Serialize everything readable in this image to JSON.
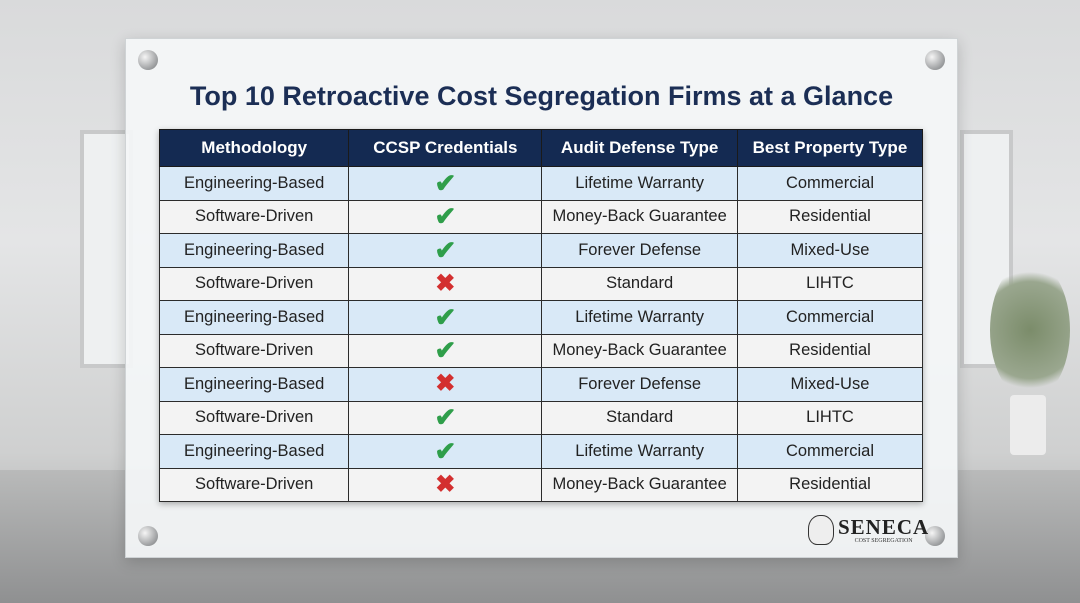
{
  "title": "Top 10 Retroactive Cost Segregation Firms at a Glance",
  "table": {
    "headers": [
      "Methodology",
      "CCSP Credentials",
      "Audit Defense Type",
      "Best Property Type"
    ],
    "rows": [
      {
        "methodology": "Engineering-Based",
        "ccsp": "check",
        "audit": "Lifetime Warranty",
        "property": "Commercial"
      },
      {
        "methodology": "Software-Driven",
        "ccsp": "check",
        "audit": "Money-Back Guarantee",
        "property": "Residential"
      },
      {
        "methodology": "Engineering-Based",
        "ccsp": "check",
        "audit": "Forever Defense",
        "property": "Mixed-Use"
      },
      {
        "methodology": "Software-Driven",
        "ccsp": "cross",
        "audit": "Standard",
        "property": "LIHTC"
      },
      {
        "methodology": "Engineering-Based",
        "ccsp": "check",
        "audit": "Lifetime Warranty",
        "property": "Commercial"
      },
      {
        "methodology": "Software-Driven",
        "ccsp": "check",
        "audit": "Money-Back Guarantee",
        "property": "Residential"
      },
      {
        "methodology": "Engineering-Based",
        "ccsp": "cross",
        "audit": "Forever Defense",
        "property": "Mixed-Use"
      },
      {
        "methodology": "Software-Driven",
        "ccsp": "check",
        "audit": "Standard",
        "property": "LIHTC"
      },
      {
        "methodology": "Engineering-Based",
        "ccsp": "check",
        "audit": "Lifetime Warranty",
        "property": "Commercial"
      },
      {
        "methodology": "Software-Driven",
        "ccsp": "cross",
        "audit": "Money-Back Guarantee",
        "property": "Residential"
      }
    ]
  },
  "logo": {
    "name": "SENECA",
    "subtitle": "COST SEGREGATION"
  },
  "colors": {
    "header": "#142a52",
    "check": "#2f9e4a",
    "cross": "#d32f2f",
    "row_alt": "#d9e9f7"
  }
}
